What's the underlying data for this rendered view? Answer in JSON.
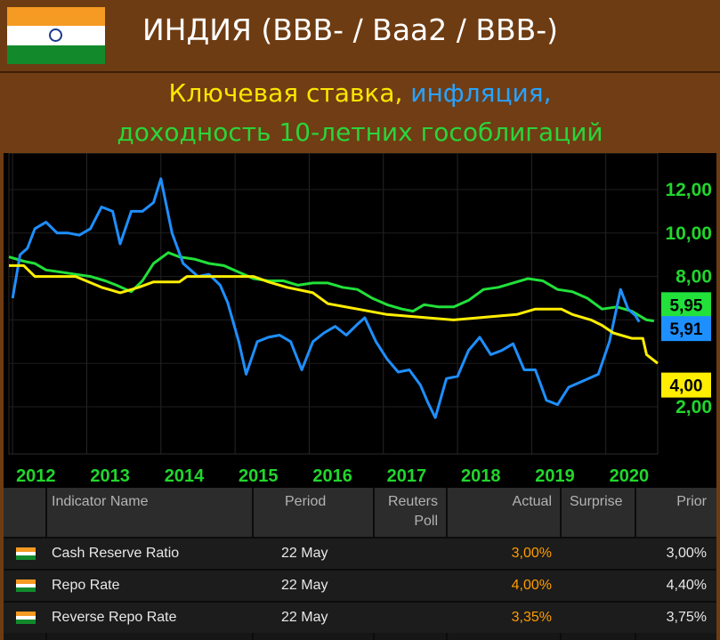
{
  "header": {
    "title": "ИНДИЯ (BBB- / Baa2 / BBB-)"
  },
  "subtitle": {
    "part1": "Ключевая ставка,",
    "part2": "инфляция,",
    "line2": "доходность 10-летних гособлигаций"
  },
  "colors": {
    "rate": "#ffee00",
    "inflation": "#1e8fff",
    "bond": "#21e13a",
    "background": "#000000"
  },
  "chart_data": {
    "type": "line",
    "x_ticks": [
      "2012",
      "2013",
      "2014",
      "2015",
      "2016",
      "2017",
      "2018",
      "2019",
      "2020"
    ],
    "y_ticks": [
      "12,00",
      "10,00",
      "8,00",
      "2,00"
    ],
    "ylim": [
      1.5,
      13
    ],
    "xlim": [
      2011.6,
      2020.35
    ],
    "end_tags": [
      "5,95",
      "5,91",
      "4,00"
    ],
    "series": [
      {
        "key": "bond",
        "color": "#21e13a",
        "points": [
          [
            2011.6,
            8.9
          ],
          [
            2011.8,
            8.7
          ],
          [
            2011.95,
            8.6
          ],
          [
            2012.1,
            8.3
          ],
          [
            2012.3,
            8.2
          ],
          [
            2012.5,
            8.1
          ],
          [
            2012.7,
            8.0
          ],
          [
            2012.9,
            7.8
          ],
          [
            2013.05,
            7.6
          ],
          [
            2013.25,
            7.3
          ],
          [
            2013.4,
            7.8
          ],
          [
            2013.55,
            8.6
          ],
          [
            2013.75,
            9.1
          ],
          [
            2013.9,
            8.9
          ],
          [
            2014.1,
            8.8
          ],
          [
            2014.3,
            8.6
          ],
          [
            2014.5,
            8.5
          ],
          [
            2014.7,
            8.2
          ],
          [
            2014.9,
            7.9
          ],
          [
            2015.1,
            7.8
          ],
          [
            2015.3,
            7.8
          ],
          [
            2015.5,
            7.6
          ],
          [
            2015.7,
            7.7
          ],
          [
            2015.9,
            7.7
          ],
          [
            2016.1,
            7.5
          ],
          [
            2016.3,
            7.4
          ],
          [
            2016.5,
            7.0
          ],
          [
            2016.7,
            6.7
          ],
          [
            2016.9,
            6.5
          ],
          [
            2017.05,
            6.4
          ],
          [
            2017.2,
            6.7
          ],
          [
            2017.4,
            6.6
          ],
          [
            2017.6,
            6.6
          ],
          [
            2017.8,
            6.9
          ],
          [
            2018.0,
            7.4
          ],
          [
            2018.2,
            7.5
          ],
          [
            2018.4,
            7.7
          ],
          [
            2018.6,
            7.9
          ],
          [
            2018.8,
            7.8
          ],
          [
            2019.0,
            7.4
          ],
          [
            2019.2,
            7.3
          ],
          [
            2019.4,
            7.0
          ],
          [
            2019.6,
            6.5
          ],
          [
            2019.8,
            6.6
          ],
          [
            2020.0,
            6.4
          ],
          [
            2020.2,
            6.0
          ],
          [
            2020.3,
            5.95
          ]
        ]
      },
      {
        "key": "inflation",
        "color": "#1e8fff",
        "points": [
          [
            2011.65,
            7.0
          ],
          [
            2011.75,
            9.0
          ],
          [
            2011.85,
            9.3
          ],
          [
            2011.95,
            10.2
          ],
          [
            2012.1,
            10.5
          ],
          [
            2012.25,
            10.0
          ],
          [
            2012.4,
            10.0
          ],
          [
            2012.55,
            9.9
          ],
          [
            2012.7,
            10.2
          ],
          [
            2012.85,
            11.2
          ],
          [
            2013.0,
            11.0
          ],
          [
            2013.1,
            9.5
          ],
          [
            2013.25,
            11.0
          ],
          [
            2013.4,
            11.0
          ],
          [
            2013.55,
            11.4
          ],
          [
            2013.65,
            12.5
          ],
          [
            2013.8,
            10.0
          ],
          [
            2013.95,
            8.6
          ],
          [
            2014.05,
            8.3
          ],
          [
            2014.15,
            8.0
          ],
          [
            2014.3,
            8.1
          ],
          [
            2014.45,
            7.6
          ],
          [
            2014.55,
            6.8
          ],
          [
            2014.7,
            5.0
          ],
          [
            2014.8,
            3.5
          ],
          [
            2014.95,
            5.0
          ],
          [
            2015.1,
            5.2
          ],
          [
            2015.25,
            5.3
          ],
          [
            2015.4,
            5.0
          ],
          [
            2015.55,
            3.7
          ],
          [
            2015.7,
            5.0
          ],
          [
            2015.85,
            5.4
          ],
          [
            2016.0,
            5.7
          ],
          [
            2016.15,
            5.3
          ],
          [
            2016.3,
            5.8
          ],
          [
            2016.4,
            6.1
          ],
          [
            2016.55,
            5.0
          ],
          [
            2016.7,
            4.2
          ],
          [
            2016.85,
            3.6
          ],
          [
            2017.0,
            3.7
          ],
          [
            2017.15,
            3.0
          ],
          [
            2017.25,
            2.2
          ],
          [
            2017.35,
            1.5
          ],
          [
            2017.5,
            3.3
          ],
          [
            2017.65,
            3.4
          ],
          [
            2017.8,
            4.6
          ],
          [
            2017.95,
            5.2
          ],
          [
            2018.1,
            4.4
          ],
          [
            2018.25,
            4.6
          ],
          [
            2018.4,
            4.9
          ],
          [
            2018.55,
            3.7
          ],
          [
            2018.7,
            3.7
          ],
          [
            2018.85,
            2.3
          ],
          [
            2019.0,
            2.1
          ],
          [
            2019.15,
            2.9
          ],
          [
            2019.35,
            3.2
          ],
          [
            2019.55,
            3.5
          ],
          [
            2019.7,
            5.0
          ],
          [
            2019.85,
            7.4
          ],
          [
            2019.95,
            6.5
          ],
          [
            2020.05,
            6.2
          ],
          [
            2020.1,
            5.91
          ]
        ]
      },
      {
        "key": "rate",
        "color": "#ffee00",
        "points": [
          [
            2011.6,
            8.5
          ],
          [
            2011.8,
            8.5
          ],
          [
            2011.95,
            8.0
          ],
          [
            2012.5,
            8.0
          ],
          [
            2012.85,
            7.5
          ],
          [
            2013.1,
            7.25
          ],
          [
            2013.35,
            7.5
          ],
          [
            2013.55,
            7.75
          ],
          [
            2013.9,
            7.75
          ],
          [
            2014.0,
            8.0
          ],
          [
            2014.9,
            8.0
          ],
          [
            2015.1,
            7.75
          ],
          [
            2015.35,
            7.5
          ],
          [
            2015.7,
            7.25
          ],
          [
            2015.9,
            6.75
          ],
          [
            2016.3,
            6.5
          ],
          [
            2016.7,
            6.25
          ],
          [
            2017.6,
            6.0
          ],
          [
            2018.45,
            6.25
          ],
          [
            2018.7,
            6.5
          ],
          [
            2019.05,
            6.5
          ],
          [
            2019.2,
            6.25
          ],
          [
            2019.45,
            6.0
          ],
          [
            2019.6,
            5.75
          ],
          [
            2019.75,
            5.4
          ],
          [
            2020.0,
            5.15
          ],
          [
            2020.15,
            5.15
          ],
          [
            2020.2,
            4.4
          ],
          [
            2020.35,
            4.0
          ]
        ]
      }
    ]
  },
  "table": {
    "headers": {
      "name": "Indicator Name",
      "period": "Period",
      "poll1": "Reuters",
      "poll2": "Poll",
      "actual": "Actual",
      "surprise": "Surprise",
      "prior": "Prior"
    },
    "rows": [
      {
        "name": "Cash Reserve Ratio",
        "period": "22 May",
        "actual": "3,00%",
        "prior": "3,00%"
      },
      {
        "name": "Repo Rate",
        "period": "22 May",
        "actual": "4,00%",
        "prior": "4,40%"
      },
      {
        "name": "Reverse Repo Rate",
        "period": "22 May",
        "actual": "3,35%",
        "prior": "3,75%"
      }
    ]
  }
}
